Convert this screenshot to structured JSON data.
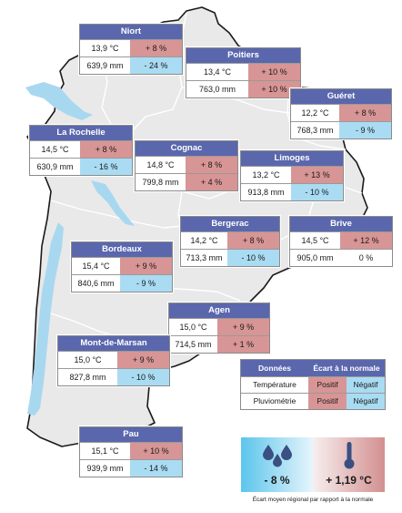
{
  "stations": [
    {
      "id": "niort",
      "name": "Niort",
      "temp": "13,9 °C",
      "temp_dev": "+ 8 %",
      "temp_sign": "pos",
      "rain": "639,9 mm",
      "rain_dev": "- 24 %",
      "rain_sign": "neg"
    },
    {
      "id": "poitiers",
      "name": "Poitiers",
      "temp": "13,4 °C",
      "temp_dev": "+ 10 %",
      "temp_sign": "pos",
      "rain": "763,0 mm",
      "rain_dev": "+ 10 %",
      "rain_sign": "pos"
    },
    {
      "id": "gueret",
      "name": "Guéret",
      "temp": "12,2 °C",
      "temp_dev": "+ 8 %",
      "temp_sign": "pos",
      "rain": "768,3 mm",
      "rain_dev": "- 9 %",
      "rain_sign": "neg"
    },
    {
      "id": "la-rochelle",
      "name": "La Rochelle",
      "temp": "14,5 °C",
      "temp_dev": "+ 8 %",
      "temp_sign": "pos",
      "rain": "630,9 mm",
      "rain_dev": "- 16 %",
      "rain_sign": "neg"
    },
    {
      "id": "cognac",
      "name": "Cognac",
      "temp": "14,8 °C",
      "temp_dev": "+ 8 %",
      "temp_sign": "pos",
      "rain": "799,8 mm",
      "rain_dev": "+ 4 %",
      "rain_sign": "pos"
    },
    {
      "id": "limoges",
      "name": "Limoges",
      "temp": "13,2 °C",
      "temp_dev": "+ 13 %",
      "temp_sign": "pos",
      "rain": "913,8 mm",
      "rain_dev": "- 10 %",
      "rain_sign": "neg"
    },
    {
      "id": "bergerac",
      "name": "Bergerac",
      "temp": "14,2 °C",
      "temp_dev": "+ 8 %",
      "temp_sign": "pos",
      "rain": "713,3 mm",
      "rain_dev": "- 10 %",
      "rain_sign": "neg"
    },
    {
      "id": "brive",
      "name": "Brive",
      "temp": "14,5 °C",
      "temp_dev": "+ 12 %",
      "temp_sign": "pos",
      "rain": "905,0 mm",
      "rain_dev": "0 %",
      "rain_sign": "neu"
    },
    {
      "id": "bordeaux",
      "name": "Bordeaux",
      "temp": "15,4 °C",
      "temp_dev": "+ 9 %",
      "temp_sign": "pos",
      "rain": "840,6 mm",
      "rain_dev": "- 9 %",
      "rain_sign": "neg"
    },
    {
      "id": "agen",
      "name": "Agen",
      "temp": "15,0 °C",
      "temp_dev": "+ 9 %",
      "temp_sign": "pos",
      "rain": "714,5 mm",
      "rain_dev": "+ 1 %",
      "rain_sign": "pos"
    },
    {
      "id": "mont-de-marsan",
      "name": "Mont-de-Marsan",
      "temp": "15,0 °C",
      "temp_dev": "+ 9 %",
      "temp_sign": "pos",
      "rain": "827,8 mm",
      "rain_dev": "- 10 %",
      "rain_sign": "neg"
    },
    {
      "id": "pau",
      "name": "Pau",
      "temp": "15,1 °C",
      "temp_dev": "+ 10 %",
      "temp_sign": "pos",
      "rain": "939,9 mm",
      "rain_dev": "- 14 %",
      "rain_sign": "neg"
    }
  ],
  "legend": {
    "header_data": "Données",
    "header_deviation": "Écart à la normale",
    "rows": [
      {
        "label": "Température",
        "positive": "Positif",
        "negative": "Négatif"
      },
      {
        "label": "Pluviométrie",
        "positive": "Positif",
        "negative": "Négatif"
      }
    ]
  },
  "summary": {
    "rain_value": "- 8 %",
    "rain_icon": "raindrops-icon",
    "temp_value": "+ 1,19 °C",
    "temp_icon": "thermometer-icon",
    "caption": "Écart moyen régional par rapport à la normale"
  },
  "colors": {
    "header": "#5a67ad",
    "positive": "#d89595",
    "negative": "#a9dcf3",
    "sea": "#a8d8ef",
    "region_fill": "#e9e9e9",
    "department_border": "#ffffff",
    "region_border": "#1a1a1a"
  }
}
